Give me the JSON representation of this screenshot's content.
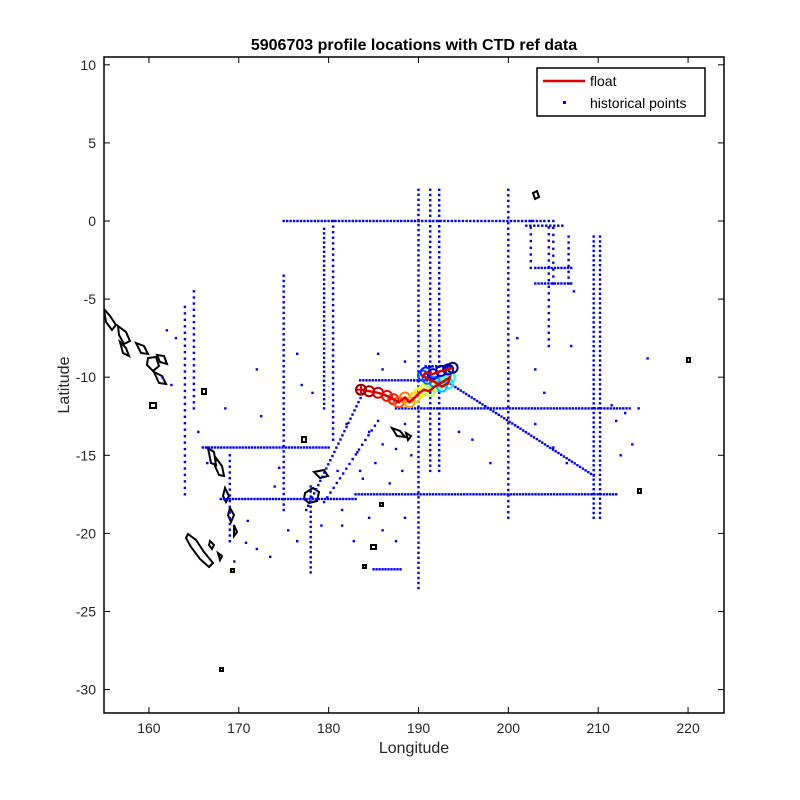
{
  "chart_data": {
    "type": "scatter",
    "title": "5906703 profile locations with CTD ref data",
    "xlabel": "Longitude",
    "ylabel": "Latitude",
    "xlim": [
      155,
      224
    ],
    "ylim": [
      -31.5,
      10.5
    ],
    "xticks": [
      160,
      170,
      180,
      190,
      200,
      210,
      220
    ],
    "yticks": [
      10,
      5,
      0,
      -5,
      -10,
      -15,
      -20,
      -25,
      -30
    ],
    "grid": false,
    "legend": {
      "placement": "top-right",
      "entries": [
        {
          "label": "float",
          "color": "#e00000",
          "style": "line"
        },
        {
          "label": "historical points",
          "color": "#0000ff",
          "style": "dot"
        }
      ]
    },
    "series": [
      {
        "name": "float",
        "color": "#e00000",
        "x": [
          183.6,
          184.5,
          185.5,
          186.5,
          187.2,
          187.8,
          188.5,
          189.0,
          189.6,
          190.1,
          190.6,
          191.2,
          191.8,
          192.4,
          193.0,
          193.5,
          193.3,
          192.6,
          191.8,
          191.0,
          190.5,
          190.8,
          191.6,
          192.5,
          193.3,
          193.8
        ],
        "y": [
          -10.8,
          -10.9,
          -11.0,
          -11.2,
          -11.4,
          -11.6,
          -11.3,
          -11.6,
          -11.3,
          -11.0,
          -10.8,
          -10.9,
          -10.6,
          -10.4,
          -10.2,
          -10.0,
          -10.4,
          -10.6,
          -10.3,
          -10.1,
          -9.9,
          -9.7,
          -9.8,
          -9.6,
          -9.5,
          -9.4
        ]
      },
      {
        "name": "historical points",
        "color": "#0000ff",
        "lines": [
          {
            "x0": 175,
            "y0": 0,
            "x1": 190,
            "y1": 0,
            "n": 40
          },
          {
            "x0": 190,
            "y0": 0,
            "x1": 204,
            "y1": 0,
            "n": 35
          },
          {
            "x0": 202,
            "y0": -0.3,
            "x1": 206,
            "y1": -0.3,
            "n": 10
          },
          {
            "x0": 179.5,
            "y0": -0.5,
            "x1": 179.5,
            "y1": -12.0,
            "n": 40
          },
          {
            "x0": 180.5,
            "y0": 0,
            "x1": 180.5,
            "y1": -14.0,
            "n": 40
          },
          {
            "x0": 190,
            "y0": 2,
            "x1": 190,
            "y1": -23.5,
            "n": 80
          },
          {
            "x0": 191.3,
            "y0": 2,
            "x1": 191.3,
            "y1": -16,
            "n": 55
          },
          {
            "x0": 192.3,
            "y0": 2,
            "x1": 192.3,
            "y1": -16,
            "n": 55
          },
          {
            "x0": 200,
            "y0": 2,
            "x1": 200,
            "y1": -19,
            "n": 60
          },
          {
            "x0": 202.5,
            "y0": 0,
            "x1": 202.5,
            "y1": -3,
            "n": 8
          },
          {
            "x0": 204.5,
            "y0": 0,
            "x1": 204.5,
            "y1": -8,
            "n": 20
          },
          {
            "x0": 205.0,
            "y0": 0,
            "x1": 205.0,
            "y1": -4,
            "n": 10
          },
          {
            "x0": 206.7,
            "y0": -1,
            "x1": 206.7,
            "y1": -4,
            "n": 9
          },
          {
            "x0": 209.5,
            "y0": -1,
            "x1": 209.5,
            "y1": -19,
            "n": 60
          },
          {
            "x0": 210.2,
            "y0": -1,
            "x1": 210.2,
            "y1": -19,
            "n": 60
          },
          {
            "x0": 203,
            "y0": -3,
            "x1": 207,
            "y1": -3,
            "n": 12
          },
          {
            "x0": 203,
            "y0": -4,
            "x1": 207,
            "y1": -4,
            "n": 12
          },
          {
            "x0": 175,
            "y0": -3.5,
            "x1": 175,
            "y1": -18.5,
            "n": 45
          },
          {
            "x0": 183.5,
            "y0": -10.2,
            "x1": 192,
            "y1": -10.2,
            "n": 25
          },
          {
            "x0": 187.5,
            "y0": -12,
            "x1": 213.5,
            "y1": -12,
            "n": 75
          },
          {
            "x0": 183,
            "y0": -17.5,
            "x1": 212,
            "y1": -17.5,
            "n": 85
          },
          {
            "x0": 168,
            "y0": -17.8,
            "x1": 183,
            "y1": -17.8,
            "n": 45
          },
          {
            "x0": 166,
            "y0": -14.5,
            "x1": 180,
            "y1": -14.5,
            "n": 42
          },
          {
            "x0": 193.2,
            "y0": -10.3,
            "x1": 209.5,
            "y1": -16.3,
            "n": 55
          },
          {
            "x0": 177.5,
            "y0": -18.5,
            "x1": 184.0,
            "y1": -10.8,
            "n": 30
          },
          {
            "x0": 179.5,
            "y0": -18.0,
            "x1": 185.5,
            "y1": -12.8,
            "n": 18
          },
          {
            "x0": 178.0,
            "y0": -22.5,
            "x1": 178.0,
            "y1": -17.0,
            "n": 18
          },
          {
            "x0": 169.0,
            "y0": -15.0,
            "x1": 169.0,
            "y1": -20.5,
            "n": 16
          },
          {
            "x0": 164,
            "y0": -5.5,
            "x1": 164,
            "y1": -17.5,
            "n": 30
          },
          {
            "x0": 165,
            "y0": -4.5,
            "x1": 165,
            "y1": -12.0,
            "n": 20
          },
          {
            "x0": 185,
            "y0": -22.3,
            "x1": 188,
            "y1": -22.3,
            "n": 10
          },
          {
            "x0": 190.8,
            "y0": -9.3,
            "x1": 193.5,
            "y1": -9.3,
            "n": 8
          }
        ],
        "points": [
          [
            184.5,
            -13.5
          ],
          [
            186,
            -14.3
          ],
          [
            185.2,
            -15.5
          ],
          [
            187.5,
            -14.6
          ],
          [
            186.8,
            -16.8
          ],
          [
            188.2,
            -16.0
          ],
          [
            186,
            -19.8
          ],
          [
            188.5,
            -19.0
          ],
          [
            187.5,
            -20.5
          ],
          [
            173.5,
            -21.5
          ],
          [
            172,
            -21.0
          ],
          [
            175.5,
            -19.8
          ],
          [
            176.5,
            -20.5
          ],
          [
            174,
            -17.0
          ],
          [
            174.5,
            -15.8
          ],
          [
            182,
            -13.0
          ],
          [
            183.2,
            -14.8
          ],
          [
            181,
            -16.0
          ],
          [
            183.8,
            -16.5
          ],
          [
            181.5,
            -19.5
          ],
          [
            182.8,
            -20.5
          ],
          [
            171,
            -19.2
          ],
          [
            170.8,
            -20.6
          ],
          [
            169.5,
            -21.8
          ],
          [
            162,
            -7.0
          ],
          [
            163,
            -7.5
          ],
          [
            162.5,
            -10.5
          ],
          [
            161.5,
            -10.0
          ],
          [
            165.5,
            -13.5
          ],
          [
            166.5,
            -15.5
          ],
          [
            168.5,
            -12.0
          ],
          [
            172,
            -9.5
          ],
          [
            176.5,
            -8.5
          ],
          [
            177,
            -10.5
          ],
          [
            172.5,
            -12.5
          ],
          [
            178.2,
            -11.0
          ],
          [
            185.5,
            -8.5
          ],
          [
            186,
            -9.5
          ],
          [
            188.5,
            -9.0
          ],
          [
            194.5,
            -13.5
          ],
          [
            196,
            -14.0
          ],
          [
            198,
            -15.5
          ],
          [
            203,
            -13.0
          ],
          [
            205,
            -14.5
          ],
          [
            206.5,
            -15.5
          ],
          [
            211.5,
            -11.8
          ],
          [
            212,
            -12.8
          ],
          [
            213,
            -12.3
          ],
          [
            214.5,
            -12.0
          ],
          [
            215.5,
            -8.8
          ],
          [
            213.8,
            -14.3
          ],
          [
            212.5,
            -15.0
          ],
          [
            203,
            -9.5
          ],
          [
            204,
            -11.0
          ],
          [
            207,
            -8.0
          ],
          [
            201,
            -7.5
          ],
          [
            207.3,
            -4.5
          ],
          [
            188.5,
            -13.0
          ],
          [
            189.2,
            -15.0
          ],
          [
            184.5,
            -19.0
          ],
          [
            181.5,
            -18.5
          ],
          [
            179.2,
            -19.5
          ],
          [
            183.5,
            -16.0
          ]
        ]
      },
      {
        "name": "",
        "color": "#000000",
        "style": "coastline"
      }
    ]
  }
}
